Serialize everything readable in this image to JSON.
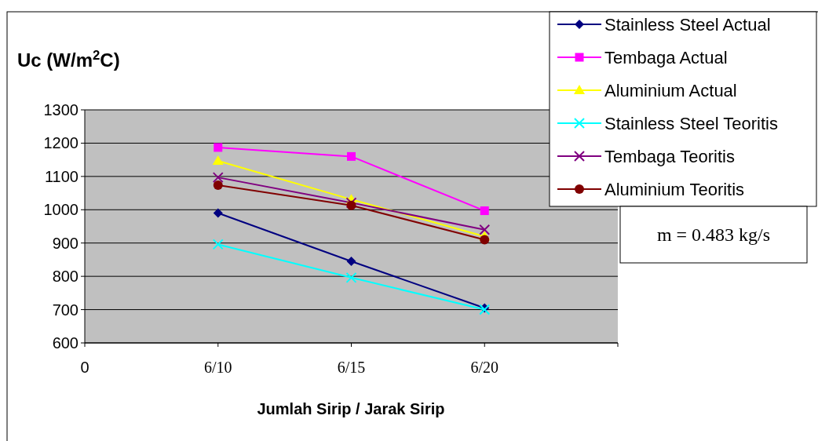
{
  "chart_data": {
    "type": "line",
    "ylabel": "Uc (W/m$^{2}$C)",
    "xlabel": "Jumlah Sirip / Jarak Sirip",
    "categories": [
      "0",
      "6/10",
      "6/15",
      "6/20",
      null
    ],
    "series": [
      {
        "name": "Stainless Steel Actual",
        "color": "#000080",
        "marker": "diamond",
        "values": [
          null,
          990,
          845,
          705,
          null
        ]
      },
      {
        "name": "Tembaga Actual",
        "color": "#ff00ff",
        "marker": "square",
        "values": [
          null,
          1187,
          1160,
          997,
          null
        ]
      },
      {
        "name": "Aluminium Actual",
        "color": "#ffff00",
        "marker": "triangle",
        "values": [
          null,
          1147,
          1031,
          920,
          null
        ]
      },
      {
        "name": "Stainless Steel Teoritis",
        "color": "#00ffff",
        "marker": "cross",
        "values": [
          null,
          896,
          796,
          700,
          null
        ]
      },
      {
        "name": "Tembaga Teoritis",
        "color": "#800080",
        "marker": "cross",
        "values": [
          null,
          1097,
          1021,
          940,
          null
        ]
      },
      {
        "name": "Aluminium Teoritis",
        "color": "#800000",
        "marker": "circle",
        "values": [
          null,
          1074,
          1013,
          910,
          null
        ]
      }
    ],
    "ylim": [
      600,
      1300
    ],
    "yticks": [
      600,
      700,
      800,
      900,
      1000,
      1100,
      1200,
      1300
    ],
    "grid": "y",
    "legend": "top right",
    "annotations": [
      "m = 0.483 kg/s"
    ]
  }
}
